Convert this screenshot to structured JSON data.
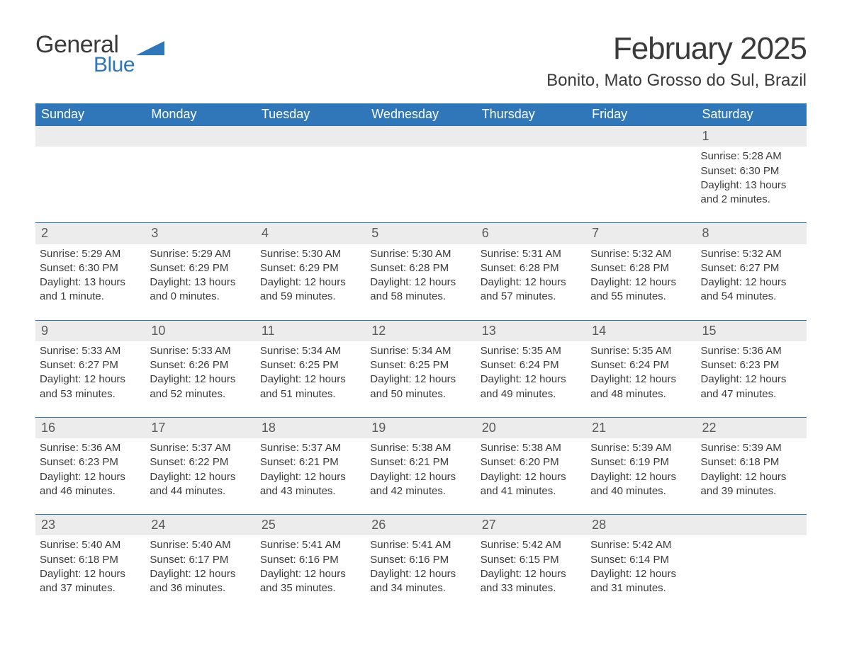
{
  "logo": {
    "text1": "General",
    "text2": "Blue",
    "flag_color": "#2f77b8"
  },
  "header": {
    "month_title": "February 2025",
    "location": "Bonito, Mato Grosso do Sul, Brazil"
  },
  "colors": {
    "header_bg": "#2f77b8",
    "header_text": "#ffffff",
    "daynum_bg": "#ececec",
    "separator": "#2f77b8",
    "body_text": "#3a3a3a",
    "page_bg": "#ffffff"
  },
  "typography": {
    "month_title_fontsize": 44,
    "location_fontsize": 24,
    "dayheader_fontsize": 18,
    "daynum_fontsize": 18,
    "body_fontsize": 15,
    "font_family": "Segoe UI / Arial"
  },
  "calendar": {
    "day_headers": [
      "Sunday",
      "Monday",
      "Tuesday",
      "Wednesday",
      "Thursday",
      "Friday",
      "Saturday"
    ],
    "weeks": [
      [
        null,
        null,
        null,
        null,
        null,
        null,
        {
          "day": "1",
          "sunrise": "Sunrise: 5:28 AM",
          "sunset": "Sunset: 6:30 PM",
          "daylight1": "Daylight: 13 hours",
          "daylight2": "and 2 minutes."
        }
      ],
      [
        {
          "day": "2",
          "sunrise": "Sunrise: 5:29 AM",
          "sunset": "Sunset: 6:30 PM",
          "daylight1": "Daylight: 13 hours",
          "daylight2": "and 1 minute."
        },
        {
          "day": "3",
          "sunrise": "Sunrise: 5:29 AM",
          "sunset": "Sunset: 6:29 PM",
          "daylight1": "Daylight: 13 hours",
          "daylight2": "and 0 minutes."
        },
        {
          "day": "4",
          "sunrise": "Sunrise: 5:30 AM",
          "sunset": "Sunset: 6:29 PM",
          "daylight1": "Daylight: 12 hours",
          "daylight2": "and 59 minutes."
        },
        {
          "day": "5",
          "sunrise": "Sunrise: 5:30 AM",
          "sunset": "Sunset: 6:28 PM",
          "daylight1": "Daylight: 12 hours",
          "daylight2": "and 58 minutes."
        },
        {
          "day": "6",
          "sunrise": "Sunrise: 5:31 AM",
          "sunset": "Sunset: 6:28 PM",
          "daylight1": "Daylight: 12 hours",
          "daylight2": "and 57 minutes."
        },
        {
          "day": "7",
          "sunrise": "Sunrise: 5:32 AM",
          "sunset": "Sunset: 6:28 PM",
          "daylight1": "Daylight: 12 hours",
          "daylight2": "and 55 minutes."
        },
        {
          "day": "8",
          "sunrise": "Sunrise: 5:32 AM",
          "sunset": "Sunset: 6:27 PM",
          "daylight1": "Daylight: 12 hours",
          "daylight2": "and 54 minutes."
        }
      ],
      [
        {
          "day": "9",
          "sunrise": "Sunrise: 5:33 AM",
          "sunset": "Sunset: 6:27 PM",
          "daylight1": "Daylight: 12 hours",
          "daylight2": "and 53 minutes."
        },
        {
          "day": "10",
          "sunrise": "Sunrise: 5:33 AM",
          "sunset": "Sunset: 6:26 PM",
          "daylight1": "Daylight: 12 hours",
          "daylight2": "and 52 minutes."
        },
        {
          "day": "11",
          "sunrise": "Sunrise: 5:34 AM",
          "sunset": "Sunset: 6:25 PM",
          "daylight1": "Daylight: 12 hours",
          "daylight2": "and 51 minutes."
        },
        {
          "day": "12",
          "sunrise": "Sunrise: 5:34 AM",
          "sunset": "Sunset: 6:25 PM",
          "daylight1": "Daylight: 12 hours",
          "daylight2": "and 50 minutes."
        },
        {
          "day": "13",
          "sunrise": "Sunrise: 5:35 AM",
          "sunset": "Sunset: 6:24 PM",
          "daylight1": "Daylight: 12 hours",
          "daylight2": "and 49 minutes."
        },
        {
          "day": "14",
          "sunrise": "Sunrise: 5:35 AM",
          "sunset": "Sunset: 6:24 PM",
          "daylight1": "Daylight: 12 hours",
          "daylight2": "and 48 minutes."
        },
        {
          "day": "15",
          "sunrise": "Sunrise: 5:36 AM",
          "sunset": "Sunset: 6:23 PM",
          "daylight1": "Daylight: 12 hours",
          "daylight2": "and 47 minutes."
        }
      ],
      [
        {
          "day": "16",
          "sunrise": "Sunrise: 5:36 AM",
          "sunset": "Sunset: 6:23 PM",
          "daylight1": "Daylight: 12 hours",
          "daylight2": "and 46 minutes."
        },
        {
          "day": "17",
          "sunrise": "Sunrise: 5:37 AM",
          "sunset": "Sunset: 6:22 PM",
          "daylight1": "Daylight: 12 hours",
          "daylight2": "and 44 minutes."
        },
        {
          "day": "18",
          "sunrise": "Sunrise: 5:37 AM",
          "sunset": "Sunset: 6:21 PM",
          "daylight1": "Daylight: 12 hours",
          "daylight2": "and 43 minutes."
        },
        {
          "day": "19",
          "sunrise": "Sunrise: 5:38 AM",
          "sunset": "Sunset: 6:21 PM",
          "daylight1": "Daylight: 12 hours",
          "daylight2": "and 42 minutes."
        },
        {
          "day": "20",
          "sunrise": "Sunrise: 5:38 AM",
          "sunset": "Sunset: 6:20 PM",
          "daylight1": "Daylight: 12 hours",
          "daylight2": "and 41 minutes."
        },
        {
          "day": "21",
          "sunrise": "Sunrise: 5:39 AM",
          "sunset": "Sunset: 6:19 PM",
          "daylight1": "Daylight: 12 hours",
          "daylight2": "and 40 minutes."
        },
        {
          "day": "22",
          "sunrise": "Sunrise: 5:39 AM",
          "sunset": "Sunset: 6:18 PM",
          "daylight1": "Daylight: 12 hours",
          "daylight2": "and 39 minutes."
        }
      ],
      [
        {
          "day": "23",
          "sunrise": "Sunrise: 5:40 AM",
          "sunset": "Sunset: 6:18 PM",
          "daylight1": "Daylight: 12 hours",
          "daylight2": "and 37 minutes."
        },
        {
          "day": "24",
          "sunrise": "Sunrise: 5:40 AM",
          "sunset": "Sunset: 6:17 PM",
          "daylight1": "Daylight: 12 hours",
          "daylight2": "and 36 minutes."
        },
        {
          "day": "25",
          "sunrise": "Sunrise: 5:41 AM",
          "sunset": "Sunset: 6:16 PM",
          "daylight1": "Daylight: 12 hours",
          "daylight2": "and 35 minutes."
        },
        {
          "day": "26",
          "sunrise": "Sunrise: 5:41 AM",
          "sunset": "Sunset: 6:16 PM",
          "daylight1": "Daylight: 12 hours",
          "daylight2": "and 34 minutes."
        },
        {
          "day": "27",
          "sunrise": "Sunrise: 5:42 AM",
          "sunset": "Sunset: 6:15 PM",
          "daylight1": "Daylight: 12 hours",
          "daylight2": "and 33 minutes."
        },
        {
          "day": "28",
          "sunrise": "Sunrise: 5:42 AM",
          "sunset": "Sunset: 6:14 PM",
          "daylight1": "Daylight: 12 hours",
          "daylight2": "and 31 minutes."
        },
        null
      ]
    ]
  }
}
